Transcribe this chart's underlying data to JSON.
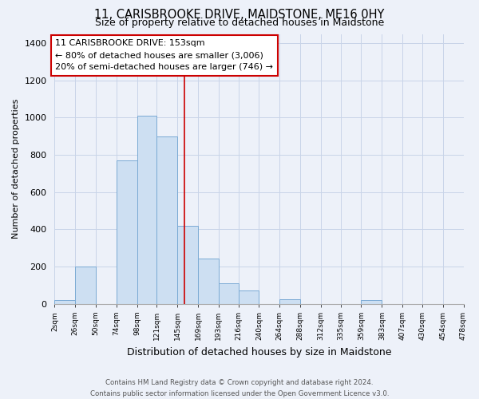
{
  "title": "11, CARISBROOKE DRIVE, MAIDSTONE, ME16 0HY",
  "subtitle": "Size of property relative to detached houses in Maidstone",
  "xlabel": "Distribution of detached houses by size in Maidstone",
  "ylabel": "Number of detached properties",
  "bar_edges": [
    2,
    26,
    50,
    74,
    98,
    121,
    145,
    169,
    193,
    216,
    240,
    264,
    288,
    312,
    335,
    359,
    383,
    407,
    430,
    454,
    478
  ],
  "bar_heights": [
    20,
    200,
    0,
    770,
    1010,
    900,
    420,
    245,
    110,
    70,
    0,
    25,
    0,
    0,
    0,
    20,
    0,
    0,
    0,
    0
  ],
  "bar_color": "#cddff2",
  "bar_edge_color": "#7aaad4",
  "vline_x": 153,
  "vline_color": "#cc0000",
  "ylim": [
    0,
    1450
  ],
  "yticks": [
    0,
    200,
    400,
    600,
    800,
    1000,
    1200,
    1400
  ],
  "xtick_labels": [
    "2sqm",
    "26sqm",
    "50sqm",
    "74sqm",
    "98sqm",
    "121sqm",
    "145sqm",
    "169sqm",
    "193sqm",
    "216sqm",
    "240sqm",
    "264sqm",
    "288sqm",
    "312sqm",
    "335sqm",
    "359sqm",
    "383sqm",
    "407sqm",
    "430sqm",
    "454sqm",
    "478sqm"
  ],
  "annotation_title": "11 CARISBROOKE DRIVE: 153sqm",
  "annotation_line1": "← 80% of detached houses are smaller (3,006)",
  "annotation_line2": "20% of semi-detached houses are larger (746) →",
  "annotation_box_color": "#ffffff",
  "annotation_box_edge": "#cc0000",
  "footer_line1": "Contains HM Land Registry data © Crown copyright and database right 2024.",
  "footer_line2": "Contains public sector information licensed under the Open Government Licence v3.0.",
  "background_color": "#edf1f9"
}
